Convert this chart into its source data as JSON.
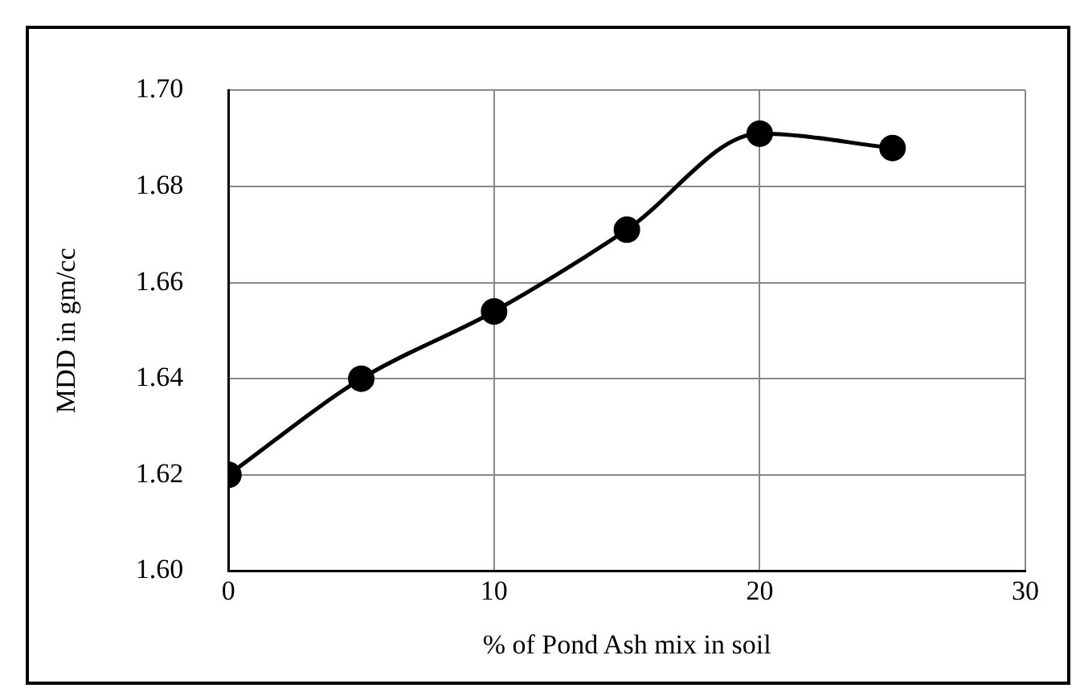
{
  "chart_data": {
    "type": "line",
    "xlabel": "% of Pond Ash mix in soil",
    "ylabel": "MDD in gm/cc",
    "x": [
      0,
      5,
      10,
      15,
      20,
      25
    ],
    "series": [
      {
        "color": "#000000",
        "values": [
          1.62,
          1.64,
          1.654,
          1.671,
          1.691,
          1.688
        ]
      }
    ],
    "xlim": [
      0,
      30
    ],
    "xticks": [
      0,
      10,
      20,
      30
    ],
    "ylim": [
      1.6,
      1.7
    ],
    "yticks": [
      {
        "value": 1.6,
        "label": "1.60"
      },
      {
        "value": 1.62,
        "label": "1.62"
      },
      {
        "value": 1.64,
        "label": "1.64"
      },
      {
        "value": 1.66,
        "label": "1.66"
      },
      {
        "value": 1.68,
        "label": "1.68"
      },
      {
        "value": 1.7,
        "label": "1.70"
      }
    ],
    "grid": true,
    "legend": false,
    "marker": "circle",
    "line_style": "solid"
  }
}
